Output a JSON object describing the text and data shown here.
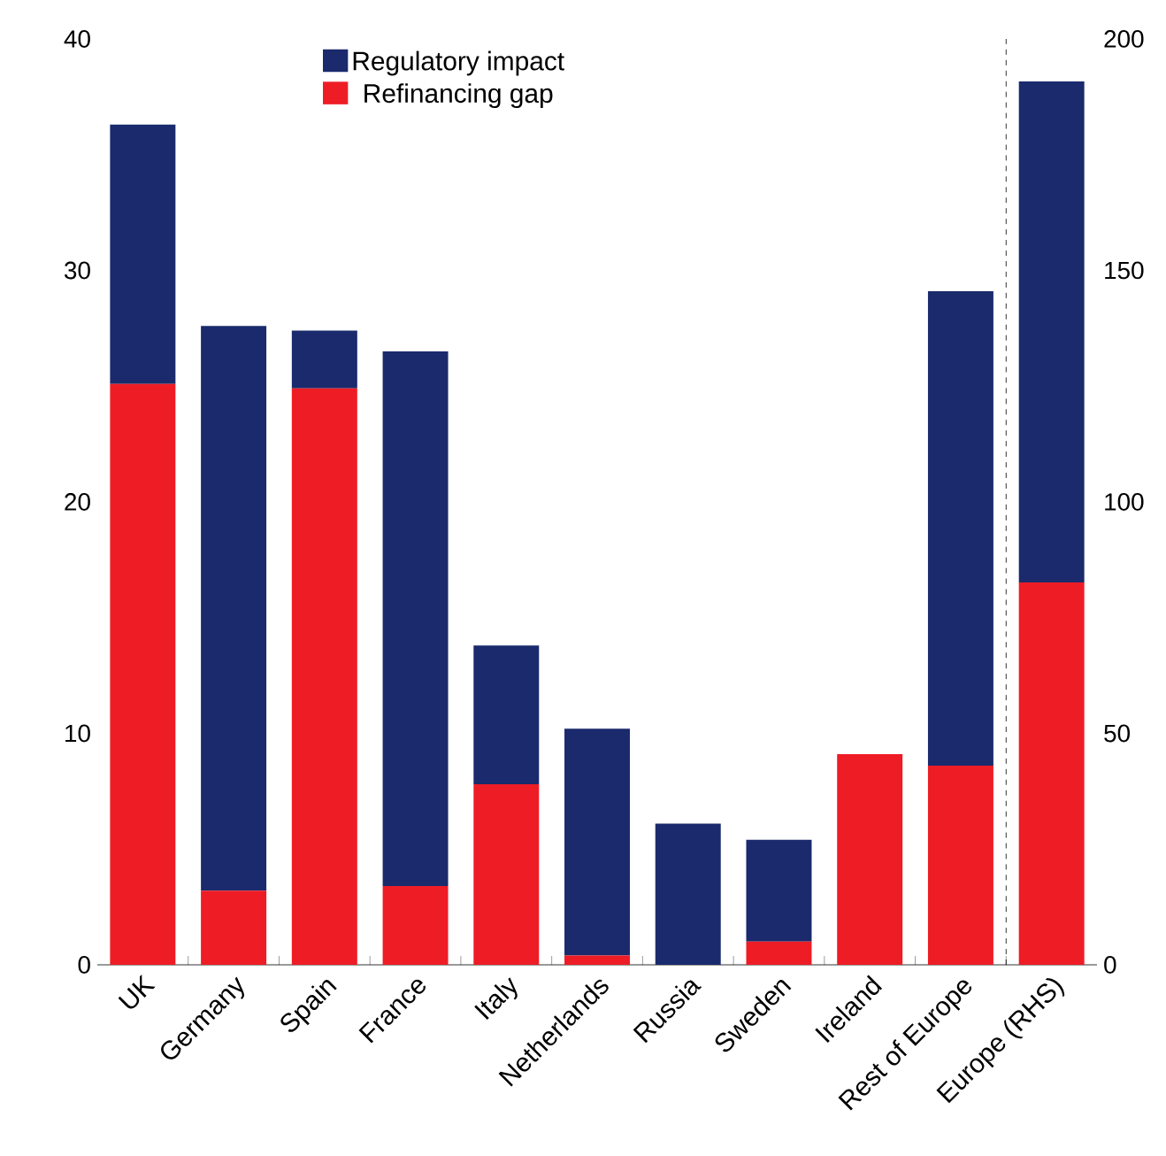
{
  "chart_data": {
    "type": "bar",
    "stacked": true,
    "categories": [
      "UK",
      "Germany",
      "Spain",
      "France",
      "Italy",
      "Netherlands",
      "Russia",
      "Sweden",
      "Ireland",
      "Rest of Europe",
      "Europe (RHS)"
    ],
    "series": [
      {
        "name": "Refinancing gap",
        "color": "#ee1c25",
        "values": [
          25.1,
          3.2,
          24.9,
          3.4,
          7.8,
          0.4,
          0,
          1.0,
          9.1,
          8.6,
          null
        ]
      },
      {
        "name": "Regulatory impact",
        "color": "#1a2a6c",
        "values": [
          11.2,
          24.4,
          2.5,
          23.1,
          6.0,
          9.8,
          6.1,
          4.4,
          0,
          20.5,
          null
        ]
      },
      {
        "color": "#ee1c25",
        "axis": "y2",
        "values": [
          null,
          null,
          null,
          null,
          null,
          null,
          null,
          null,
          null,
          null,
          82.6
        ]
      },
      {
        "color": "#1a2a6c",
        "axis": "y2",
        "values": [
          null,
          null,
          null,
          null,
          null,
          null,
          null,
          null,
          null,
          null,
          108.2
        ]
      }
    ],
    "ylim": [
      0,
      40
    ],
    "yticks": [
      0,
      10,
      20,
      30,
      40
    ],
    "y2lim": [
      0,
      200
    ],
    "y2ticks": [
      0,
      50,
      100,
      150,
      200
    ],
    "legend": "top",
    "grid": false
  }
}
